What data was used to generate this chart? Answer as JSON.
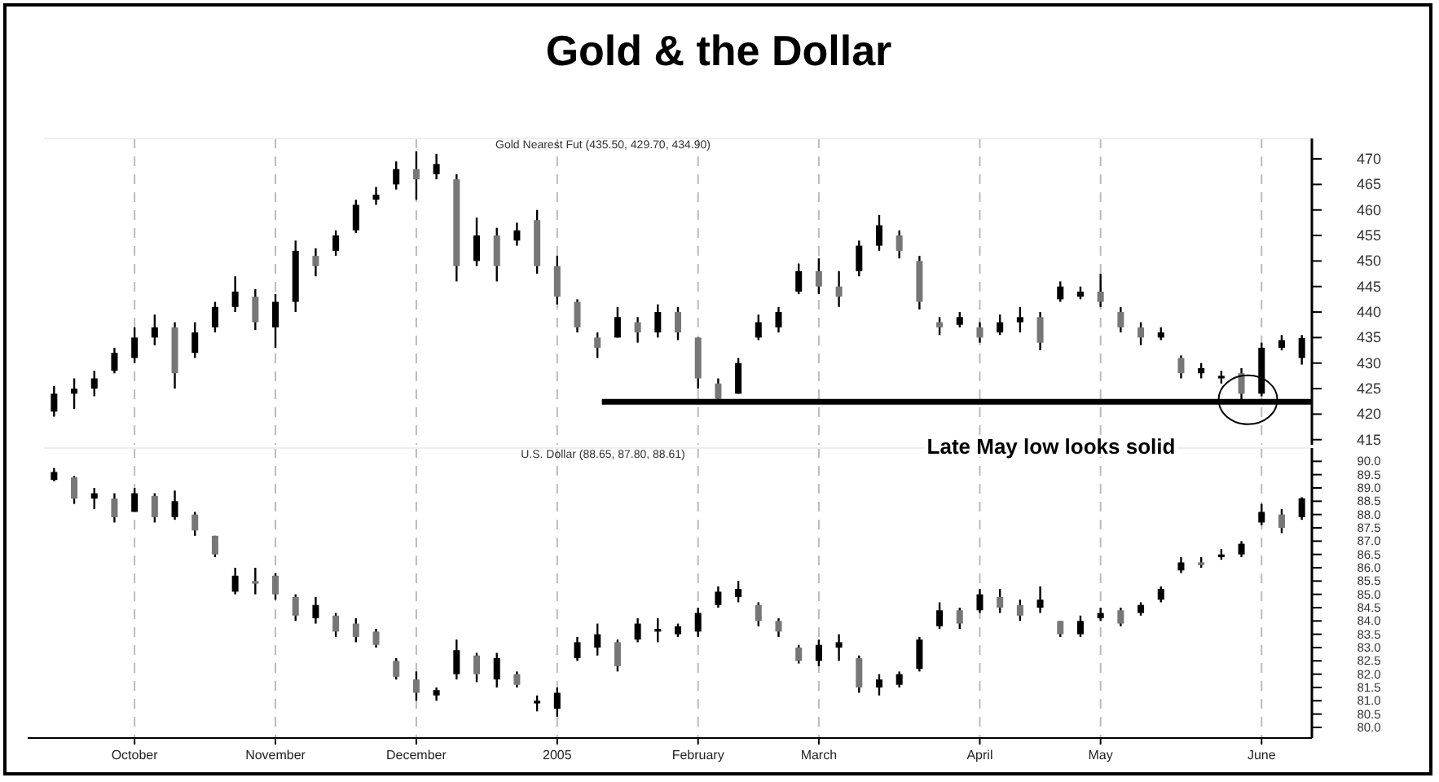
{
  "chart_data": [
    {
      "type": "candlestick",
      "title": "Gold & the Dollar",
      "subtitle": "Gold Nearest Fut (435.50, 429.70, 434.90)",
      "categories": [
        null,
        null,
        null,
        null,
        null,
        null,
        null,
        null,
        null,
        null,
        null,
        null,
        null,
        null,
        null,
        null,
        null,
        null,
        null,
        null,
        null,
        null,
        null,
        null,
        null,
        null,
        null,
        null,
        null,
        null,
        null,
        null,
        null,
        null,
        null,
        null,
        null,
        null,
        null,
        null,
        null,
        null,
        null,
        null,
        null,
        null,
        null,
        null,
        null,
        null,
        null,
        null,
        null,
        null,
        null,
        null,
        null,
        null,
        null,
        null,
        null,
        null,
        null
      ],
      "ohlc": [
        [
          420.5,
          425.5,
          419.5,
          424
        ],
        [
          424,
          427,
          421,
          425
        ],
        [
          425,
          428.5,
          423.5,
          427
        ],
        [
          428.5,
          433,
          428,
          432
        ],
        [
          431,
          437,
          430,
          435
        ],
        [
          435,
          439.5,
          433.5,
          437
        ],
        [
          437,
          438,
          425,
          428
        ],
        [
          432,
          438,
          431,
          436
        ],
        [
          437,
          442,
          436,
          441
        ],
        [
          441,
          447,
          440,
          444
        ],
        [
          443,
          444.5,
          436.5,
          438
        ],
        [
          437,
          443.5,
          433,
          442
        ],
        [
          442,
          454,
          440,
          452
        ],
        [
          451,
          452.5,
          447,
          449
        ],
        [
          452,
          456,
          451,
          455
        ],
        [
          456,
          462,
          455.5,
          461
        ],
        [
          462,
          464.5,
          461,
          463
        ],
        [
          465,
          469.5,
          464,
          468
        ],
        [
          468,
          471.5,
          462,
          466
        ],
        [
          467,
          471,
          466,
          469
        ],
        [
          466,
          467,
          446,
          449
        ],
        [
          450,
          458.5,
          449,
          455
        ],
        [
          455,
          456.5,
          446,
          449
        ],
        [
          454,
          457.5,
          453,
          456
        ],
        [
          458,
          460,
          447.5,
          449
        ],
        [
          449,
          451,
          441.5,
          443
        ],
        [
          442,
          442.5,
          436,
          437
        ],
        [
          435,
          436,
          431,
          433
        ],
        [
          435,
          441,
          435,
          439
        ],
        [
          438,
          439,
          434,
          436
        ],
        [
          436,
          441.5,
          435,
          440
        ],
        [
          440,
          441,
          434.5,
          436
        ],
        [
          435,
          435,
          425,
          427
        ],
        [
          426,
          427,
          422,
          423
        ],
        [
          424,
          431,
          424,
          430
        ],
        [
          435,
          439.5,
          434.5,
          438
        ],
        [
          437,
          441,
          436,
          440
        ],
        [
          444,
          449.5,
          443.5,
          448
        ],
        [
          448,
          450.5,
          443.5,
          445
        ],
        [
          445,
          448,
          441,
          443
        ],
        [
          448,
          454,
          447,
          453
        ],
        [
          453,
          459,
          452,
          457
        ],
        [
          455,
          456,
          450.5,
          452
        ],
        [
          450,
          451,
          440.5,
          442
        ],
        [
          438,
          439,
          435.5,
          437
        ],
        [
          437.5,
          440,
          437,
          439
        ],
        [
          437,
          438,
          434,
          435
        ],
        [
          436,
          439.5,
          435.5,
          438
        ],
        [
          438,
          441,
          436,
          439
        ],
        [
          439,
          440,
          432.5,
          434
        ],
        [
          442.5,
          446,
          442,
          445
        ],
        [
          443,
          445,
          442.5,
          444
        ],
        [
          444,
          447.5,
          441,
          442
        ],
        [
          440,
          441,
          436,
          437
        ],
        [
          437,
          438,
          433.5,
          435
        ],
        [
          435,
          437,
          434.5,
          436
        ],
        [
          431,
          431.5,
          427,
          428
        ],
        [
          428,
          430,
          427,
          429
        ],
        [
          427,
          428.5,
          426,
          427.5
        ],
        [
          428,
          429,
          422.5,
          424
        ],
        [
          424,
          434,
          423.5,
          433
        ],
        [
          433,
          435.5,
          432.5,
          434.5
        ],
        [
          431,
          435.5,
          429.7,
          434.9
        ]
      ],
      "ylim": [
        414,
        474
      ],
      "yticks": [
        415,
        420,
        425,
        430,
        435,
        440,
        445,
        450,
        455,
        460,
        465,
        470
      ],
      "grid": "x",
      "tick_labels": "y",
      "ref_lines": [
        {
          "axis": "y",
          "value": 422.4,
          "color": "#000000"
        }
      ],
      "annotations": [
        "Late May low looks solid"
      ]
    },
    {
      "type": "candlestick",
      "subtitle": "U.S. Dollar (88.65, 87.80, 88.61)",
      "categories": [
        null,
        null,
        null,
        null,
        "October",
        null,
        null,
        null,
        null,
        null,
        null,
        "November",
        null,
        null,
        null,
        null,
        null,
        null,
        "December",
        null,
        null,
        null,
        null,
        null,
        null,
        "2005",
        null,
        null,
        null,
        null,
        null,
        null,
        "February",
        null,
        null,
        null,
        null,
        null,
        "March",
        null,
        null,
        null,
        null,
        null,
        null,
        null,
        "April",
        null,
        null,
        null,
        null,
        null,
        "May",
        null,
        null,
        null,
        null,
        null,
        null,
        null,
        "June",
        null,
        null
      ],
      "ohlc": [
        [
          89.3,
          89.75,
          89.25,
          89.6
        ],
        [
          89.4,
          89.45,
          88.4,
          88.6
        ],
        [
          88.6,
          89.0,
          88.2,
          88.8
        ],
        [
          88.6,
          88.8,
          87.7,
          87.9
        ],
        [
          88.1,
          89.0,
          88.1,
          88.8
        ],
        [
          88.7,
          88.8,
          87.7,
          87.9
        ],
        [
          87.9,
          88.9,
          87.8,
          88.5
        ],
        [
          88.0,
          88.1,
          87.2,
          87.4
        ],
        [
          87.2,
          87.2,
          86.4,
          86.5
        ],
        [
          85.1,
          86.0,
          85.0,
          85.7
        ],
        [
          85.5,
          86.0,
          85.0,
          85.4
        ],
        [
          85.7,
          85.8,
          84.8,
          85.0
        ],
        [
          84.9,
          85.0,
          84.0,
          84.2
        ],
        [
          84.1,
          84.9,
          83.9,
          84.6
        ],
        [
          84.2,
          84.3,
          83.4,
          83.6
        ],
        [
          83.9,
          84.1,
          83.2,
          83.4
        ],
        [
          83.6,
          83.7,
          83.0,
          83.1
        ],
        [
          82.5,
          82.6,
          81.8,
          81.9
        ],
        [
          81.8,
          82.1,
          81.0,
          81.3
        ],
        [
          81.2,
          81.5,
          81.0,
          81.4
        ],
        [
          82.0,
          83.3,
          81.8,
          82.9
        ],
        [
          82.7,
          82.8,
          81.7,
          82.0
        ],
        [
          81.8,
          82.8,
          81.5,
          82.6
        ],
        [
          82.0,
          82.1,
          81.5,
          81.6
        ],
        [
          80.9,
          81.2,
          80.6,
          81.0
        ],
        [
          80.7,
          81.5,
          80.4,
          81.3
        ],
        [
          82.6,
          83.4,
          82.5,
          83.2
        ],
        [
          83.0,
          83.9,
          82.7,
          83.5
        ],
        [
          83.2,
          83.3,
          82.1,
          82.3
        ],
        [
          83.3,
          84.1,
          83.2,
          83.9
        ],
        [
          83.6,
          84.1,
          83.2,
          83.7
        ],
        [
          83.5,
          83.9,
          83.4,
          83.8
        ],
        [
          83.6,
          84.5,
          83.4,
          84.3
        ],
        [
          84.6,
          85.3,
          84.5,
          85.1
        ],
        [
          84.9,
          85.5,
          84.7,
          85.2
        ],
        [
          84.6,
          84.7,
          83.8,
          84.0
        ],
        [
          84.0,
          84.1,
          83.4,
          83.6
        ],
        [
          83.0,
          83.1,
          82.4,
          82.5
        ],
        [
          82.5,
          83.3,
          82.3,
          83.1
        ],
        [
          83.0,
          83.5,
          82.5,
          83.2
        ],
        [
          82.6,
          82.7,
          81.3,
          81.5
        ],
        [
          81.5,
          82.0,
          81.2,
          81.8
        ],
        [
          81.6,
          82.1,
          81.5,
          82.0
        ],
        [
          82.2,
          83.4,
          82.1,
          83.3
        ],
        [
          83.8,
          84.7,
          83.7,
          84.4
        ],
        [
          84.4,
          84.5,
          83.7,
          83.9
        ],
        [
          84.4,
          85.2,
          84.3,
          85.0
        ],
        [
          84.9,
          85.2,
          84.3,
          84.5
        ],
        [
          84.6,
          84.8,
          84.0,
          84.2
        ],
        [
          84.5,
          85.3,
          84.3,
          84.8
        ],
        [
          84.0,
          84.0,
          83.4,
          83.5
        ],
        [
          83.5,
          84.2,
          83.4,
          84.0
        ],
        [
          84.1,
          84.5,
          84.0,
          84.3
        ],
        [
          84.4,
          84.5,
          83.8,
          83.9
        ],
        [
          84.3,
          84.7,
          84.2,
          84.6
        ],
        [
          84.8,
          85.3,
          84.7,
          85.2
        ],
        [
          85.9,
          86.4,
          85.8,
          86.2
        ],
        [
          86.2,
          86.4,
          86.0,
          86.1
        ],
        [
          86.4,
          86.7,
          86.3,
          86.5
        ],
        [
          86.5,
          87.0,
          86.4,
          86.9
        ],
        [
          87.7,
          88.4,
          87.6,
          88.1
        ],
        [
          88.0,
          88.2,
          87.3,
          87.5
        ],
        [
          87.9,
          88.65,
          87.8,
          88.61
        ]
      ],
      "ylim": [
        79.6,
        90.5
      ],
      "yticks": [
        {
          "value": 80,
          "label": "80.0"
        },
        {
          "value": 80.5,
          "label": "80.5"
        },
        {
          "value": 81,
          "label": "81.0"
        },
        {
          "value": 81.5,
          "label": "81.5"
        },
        {
          "value": 82,
          "label": "82.0"
        },
        {
          "value": 82.5,
          "label": "82.5"
        },
        {
          "value": 83,
          "label": "83.0"
        },
        {
          "value": 83.5,
          "label": "83.5"
        },
        {
          "value": 84,
          "label": "84.0"
        },
        {
          "value": 84.5,
          "label": "84.5"
        },
        {
          "value": 85,
          "label": "85.0"
        },
        {
          "value": 85.5,
          "label": "85.5"
        },
        {
          "value": 86,
          "label": "86.0"
        },
        {
          "value": 86.5,
          "label": "86.5"
        },
        {
          "value": 87,
          "label": "87.0"
        },
        {
          "value": 87.5,
          "label": "87.5"
        },
        {
          "value": 88,
          "label": "88.0"
        },
        {
          "value": 88.5,
          "label": "88.5"
        },
        {
          "value": 89,
          "label": "89.0"
        },
        {
          "value": 89.5,
          "label": "89.5"
        },
        {
          "value": 90,
          "label": "90.0"
        }
      ],
      "grid": "x"
    }
  ]
}
